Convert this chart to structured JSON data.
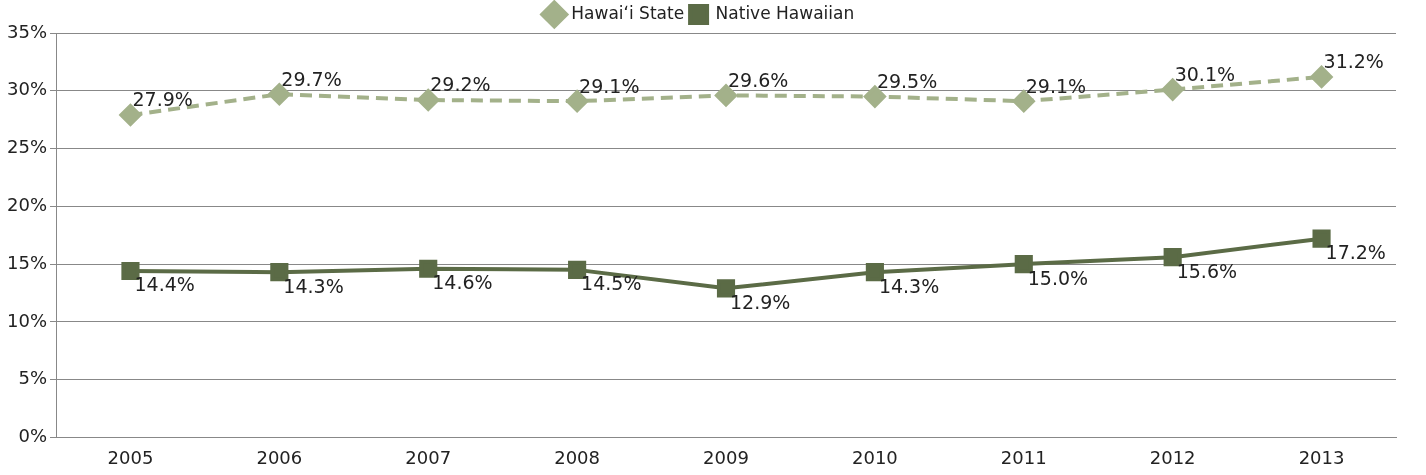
{
  "chart_data": {
    "type": "line",
    "categories": [
      "2005",
      "2006",
      "2007",
      "2008",
      "2009",
      "2010",
      "2011",
      "2012",
      "2013"
    ],
    "series": [
      {
        "name": "Hawaiʻi State",
        "color": "#a3b18a",
        "marker": "diamond",
        "line_style": "dashed",
        "values": [
          27.9,
          29.7,
          29.2,
          29.1,
          29.6,
          29.5,
          29.1,
          30.1,
          31.2
        ],
        "value_labels": [
          "27.9%",
          "29.7%",
          "29.2%",
          "29.1%",
          "29.6%",
          "29.5%",
          "29.1%",
          "30.1%",
          "31.2%"
        ]
      },
      {
        "name": "Native Hawaiian",
        "color": "#5b6b46",
        "marker": "square",
        "line_style": "solid",
        "values": [
          14.4,
          14.3,
          14.6,
          14.5,
          12.9,
          14.3,
          15.0,
          15.6,
          17.2
        ],
        "value_labels": [
          "14.4%",
          "14.3%",
          "14.6%",
          "14.5%",
          "12.9%",
          "14.3%",
          "15.0%",
          "15.6%",
          "17.2%"
        ]
      }
    ],
    "ylim": [
      0,
      35
    ],
    "yticks": [
      {
        "value": 0,
        "label": "0%"
      },
      {
        "value": 5,
        "label": "5%"
      },
      {
        "value": 10,
        "label": "10%"
      },
      {
        "value": 15,
        "label": "15%"
      },
      {
        "value": 20,
        "label": "20%"
      },
      {
        "value": 25,
        "label": "25%"
      },
      {
        "value": 30,
        "label": "30%"
      },
      {
        "value": 35,
        "label": "35%"
      }
    ],
    "grid": "y",
    "legend": "top"
  }
}
